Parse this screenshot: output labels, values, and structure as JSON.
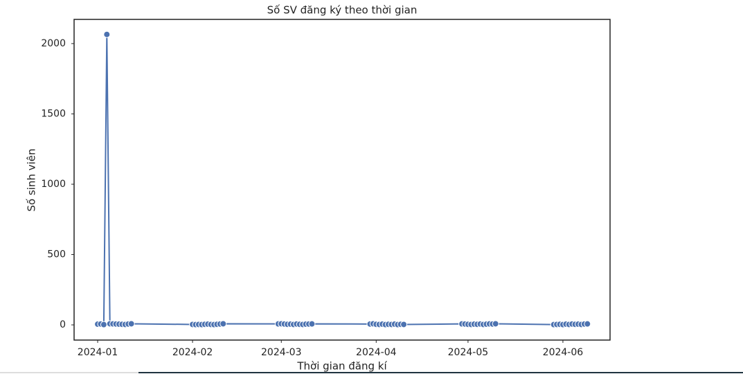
{
  "chart_data": {
    "type": "line",
    "title": "Số SV đăng ký theo thời gian",
    "x_label": "Thời gian đăng kí",
    "y_label": "Số sinh viên",
    "x": [
      0,
      1,
      2,
      3,
      4,
      5,
      6,
      7,
      8,
      9,
      10,
      11,
      31,
      32,
      33,
      34,
      35,
      36,
      37,
      38,
      39,
      40,
      41,
      59,
      60,
      61,
      62,
      63,
      64,
      65,
      66,
      67,
      68,
      69,
      70,
      89,
      90,
      91,
      92,
      93,
      94,
      95,
      96,
      97,
      98,
      99,
      100,
      119,
      120,
      121,
      122,
      123,
      124,
      125,
      126,
      127,
      128,
      129,
      130,
      149,
      150,
      151,
      152,
      153,
      154,
      155,
      156,
      157,
      158,
      159,
      160
    ],
    "series": [
      {
        "name": "Số sinh viên",
        "color": "#4c72b0",
        "values": [
          5,
          6,
          2,
          2065,
          8,
          7,
          6,
          5,
          4,
          3,
          6,
          8,
          3,
          2,
          3,
          2,
          4,
          5,
          3,
          2,
          4,
          6,
          8,
          7,
          8,
          6,
          4,
          5,
          3,
          6,
          4,
          3,
          5,
          6,
          7,
          6,
          8,
          4,
          3,
          5,
          2,
          4,
          3,
          5,
          2,
          4,
          3,
          7,
          6,
          4,
          3,
          5,
          4,
          6,
          3,
          5,
          7,
          6,
          8,
          2,
          3,
          4,
          2,
          5,
          3,
          6,
          4,
          5,
          3,
          6,
          7
        ]
      }
    ],
    "xlim": [
      -7.7,
      167.4
    ],
    "xticks": [
      {
        "value": 0,
        "label": "2024-01"
      },
      {
        "value": 31,
        "label": "2024-02"
      },
      {
        "value": 60,
        "label": "2024-03"
      },
      {
        "value": 91,
        "label": "2024-04"
      },
      {
        "value": 121,
        "label": "2024-05"
      },
      {
        "value": 152,
        "label": "2024-06"
      }
    ],
    "ylim": [
      -108,
      2172
    ],
    "yticks": [
      0,
      500,
      1000,
      1500,
      2000
    ],
    "grid": false
  }
}
